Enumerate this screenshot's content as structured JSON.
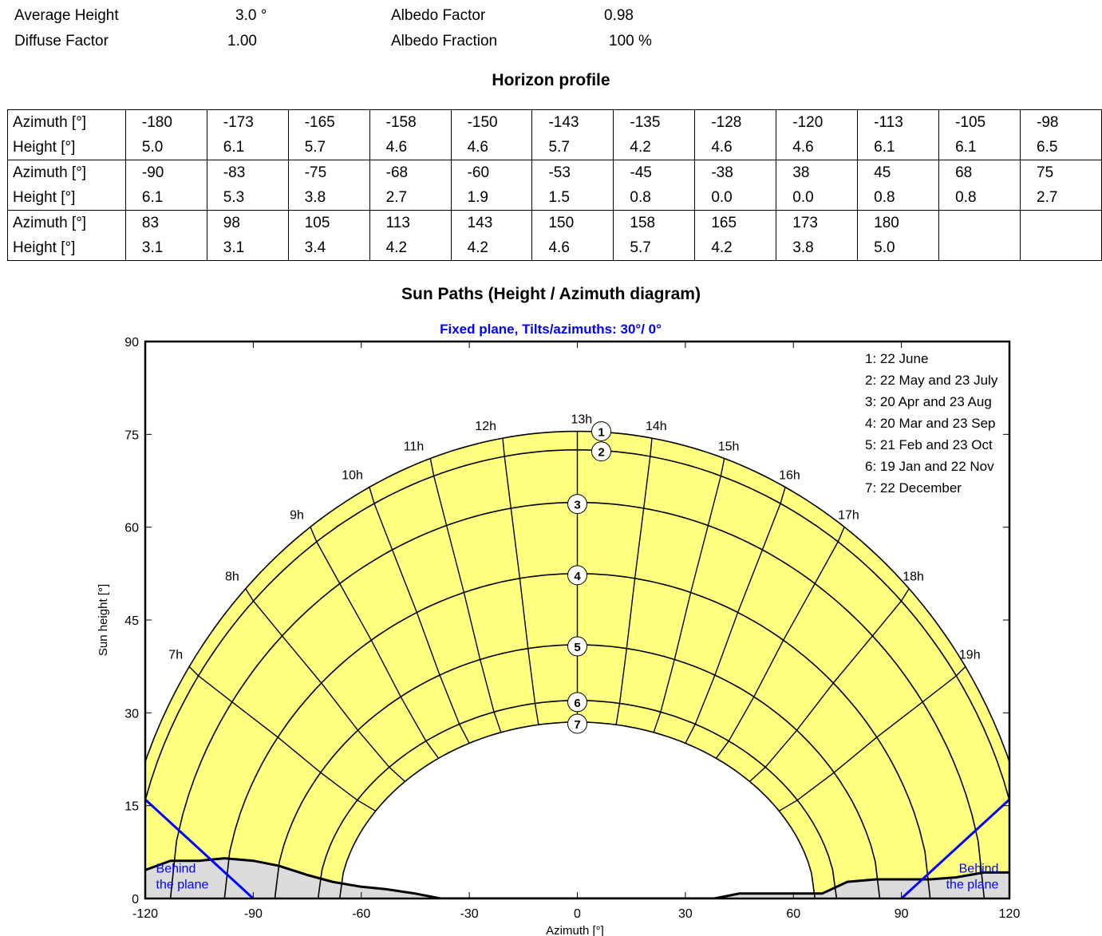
{
  "params": [
    {
      "label": "Average Height",
      "value": "3.0 °"
    },
    {
      "label": "Albedo Factor",
      "value": "0.98"
    },
    {
      "label": "Diffuse Factor",
      "value": "1.00"
    },
    {
      "label": "Albedo Fraction",
      "value": "100 %"
    }
  ],
  "horizon": {
    "title": "Horizon profile",
    "azimuth_label": "Azimuth [°]",
    "height_label": "Height [°]",
    "rows": [
      {
        "az": [
          "-180",
          "-173",
          "-165",
          "-158",
          "-150",
          "-143",
          "-135",
          "-128",
          "-120",
          "-113",
          "-105",
          "-98"
        ],
        "h": [
          "5.0",
          "6.1",
          "5.7",
          "4.6",
          "4.6",
          "5.7",
          "4.2",
          "4.6",
          "4.6",
          "6.1",
          "6.1",
          "6.5"
        ]
      },
      {
        "az": [
          "-90",
          "-83",
          "-75",
          "-68",
          "-60",
          "-53",
          "-45",
          "-38",
          "38",
          "45",
          "68",
          "75"
        ],
        "h": [
          "6.1",
          "5.3",
          "3.8",
          "2.7",
          "1.9",
          "1.5",
          "0.8",
          "0.0",
          "0.0",
          "0.8",
          "0.8",
          "2.7"
        ]
      },
      {
        "az": [
          "83",
          "98",
          "105",
          "113",
          "143",
          "150",
          "158",
          "165",
          "173",
          "180",
          "",
          ""
        ],
        "h": [
          "3.1",
          "3.1",
          "3.4",
          "4.2",
          "4.2",
          "4.6",
          "5.7",
          "4.2",
          "3.8",
          "5.0",
          "",
          ""
        ]
      }
    ]
  },
  "chart_title": "Sun Paths (Height / Azimuth diagram)",
  "chart_data": {
    "type": "line",
    "title": "Fixed plane, Tilts/azimuths: 30°/ 0°",
    "xlabel": "Azimuth [°]",
    "ylabel": "Sun height [°]",
    "xlim": [
      -120,
      120
    ],
    "ylim": [
      0,
      90
    ],
    "xticks": [
      -120,
      -90,
      -60,
      -30,
      0,
      30,
      60,
      90,
      120
    ],
    "yticks": [
      0,
      15,
      30,
      45,
      60,
      75,
      90
    ],
    "plane_label": "Behind the plane",
    "plane_label_lines": [
      "Behind",
      "the plane"
    ],
    "plane_line_color": "#0000ff",
    "fill_color": "#ffff80",
    "horizon_fill": "#dcdcdc",
    "series": [
      {
        "name": "1: 22 June",
        "marker": "1",
        "noon_height": 75.5,
        "sunrise_azimuth": -127
      },
      {
        "name": "2: 22 May and 23 July",
        "marker": "2",
        "noon_height": 72.5,
        "sunrise_azimuth": -124
      },
      {
        "name": "3: 20 Apr and 23 Aug",
        "marker": "3",
        "noon_height": 64.0,
        "sunrise_azimuth": -113
      },
      {
        "name": "4: 20 Mar and 23 Sep",
        "marker": "4",
        "noon_height": 52.5,
        "sunrise_azimuth": -98
      },
      {
        "name": "5: 21 Feb and 23 Oct",
        "marker": "5",
        "noon_height": 41.0,
        "sunrise_azimuth": -84
      },
      {
        "name": "6: 19 Jan and 22 Nov",
        "marker": "6",
        "noon_height": 32.0,
        "sunrise_azimuth": -72
      },
      {
        "name": "7: 22 December",
        "marker": "7",
        "noon_height": 28.5,
        "sunrise_azimuth": -66
      }
    ],
    "hour_labels": [
      "7h",
      "8h",
      "9h",
      "10h",
      "11h",
      "12h",
      "13h",
      "14h",
      "15h",
      "16h",
      "17h",
      "18h",
      "19h"
    ],
    "hour_offsets": [
      -6,
      -5,
      -4,
      -3,
      -2,
      -1,
      0,
      1,
      2,
      3,
      4,
      5,
      6
    ],
    "horizon_profile": {
      "azimuth": [
        -120,
        -113,
        -105,
        -98,
        -90,
        -83,
        -75,
        -68,
        -60,
        -53,
        -45,
        -38,
        38,
        45,
        68,
        75,
        83,
        98,
        105,
        113,
        120
      ],
      "height": [
        4.6,
        6.1,
        6.1,
        6.5,
        6.1,
        5.3,
        3.8,
        2.7,
        1.9,
        1.5,
        0.8,
        0.0,
        0.0,
        0.8,
        0.8,
        2.7,
        3.1,
        3.1,
        3.4,
        4.2,
        4.2
      ]
    }
  }
}
